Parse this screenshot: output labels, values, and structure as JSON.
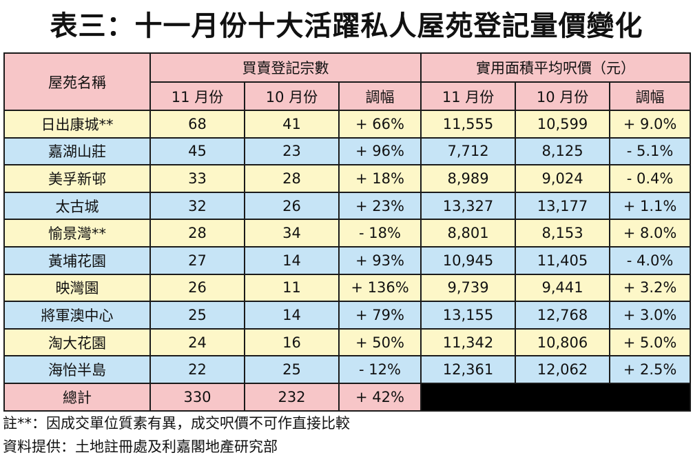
{
  "title": "表三：十一月份十大活躍私人屋苑登記量價變化",
  "table": {
    "header_estate": "屋苑名稱",
    "group_volume": "買賣登記宗數",
    "group_price": "實用面積平均呎價（元）",
    "sub_nov": "11 月份",
    "sub_oct": "10 月份",
    "sub_change": "調幅",
    "rows": [
      {
        "name": "日出康城**",
        "vol_nov": "68",
        "vol_oct": "41",
        "vol_chg": "+ 66%",
        "price_nov": "11,555",
        "price_oct": "10,599",
        "price_chg": "+ 9.0%"
      },
      {
        "name": "嘉湖山莊",
        "vol_nov": "45",
        "vol_oct": "23",
        "vol_chg": "+ 96%",
        "price_nov": "7,712",
        "price_oct": "8,125",
        "price_chg": "- 5.1%"
      },
      {
        "name": "美孚新邨",
        "vol_nov": "33",
        "vol_oct": "28",
        "vol_chg": "+ 18%",
        "price_nov": "8,989",
        "price_oct": "9,024",
        "price_chg": "- 0.4%"
      },
      {
        "name": "太古城",
        "vol_nov": "32",
        "vol_oct": "26",
        "vol_chg": "+ 23%",
        "price_nov": "13,327",
        "price_oct": "13,177",
        "price_chg": "+ 1.1%"
      },
      {
        "name": "愉景灣**",
        "vol_nov": "28",
        "vol_oct": "34",
        "vol_chg": "- 18%",
        "price_nov": "8,801",
        "price_oct": "8,153",
        "price_chg": "+ 8.0%"
      },
      {
        "name": "黃埔花園",
        "vol_nov": "27",
        "vol_oct": "14",
        "vol_chg": "+ 93%",
        "price_nov": "10,945",
        "price_oct": "11,405",
        "price_chg": "- 4.0%"
      },
      {
        "name": "映灣園",
        "vol_nov": "26",
        "vol_oct": "11",
        "vol_chg": "+ 136%",
        "price_nov": "9,739",
        "price_oct": "9,441",
        "price_chg": "+ 3.2%"
      },
      {
        "name": "將軍澳中心",
        "vol_nov": "25",
        "vol_oct": "14",
        "vol_chg": "+ 79%",
        "price_nov": "13,155",
        "price_oct": "12,768",
        "price_chg": "+ 3.0%"
      },
      {
        "name": "淘大花園",
        "vol_nov": "24",
        "vol_oct": "16",
        "vol_chg": "+ 50%",
        "price_nov": "11,342",
        "price_oct": "10,806",
        "price_chg": "+ 5.0%"
      },
      {
        "name": "海怡半島",
        "vol_nov": "22",
        "vol_oct": "25",
        "vol_chg": "- 12%",
        "price_nov": "12,361",
        "price_oct": "12,062",
        "price_chg": "+ 2.5%"
      }
    ],
    "total": {
      "label": "總計",
      "vol_nov": "330",
      "vol_oct": "232",
      "vol_chg": "+ 42%"
    }
  },
  "notes": {
    "note1": "註**：因成交單位質素有異，成交呎價不可作直接比較",
    "note2": "資料提供：土地註冊處及利嘉閣地產研究部"
  },
  "colors": {
    "header_pink": "#f7c6c8",
    "row_yellow": "#fdf7c8",
    "row_blue": "#c6e4f6"
  }
}
